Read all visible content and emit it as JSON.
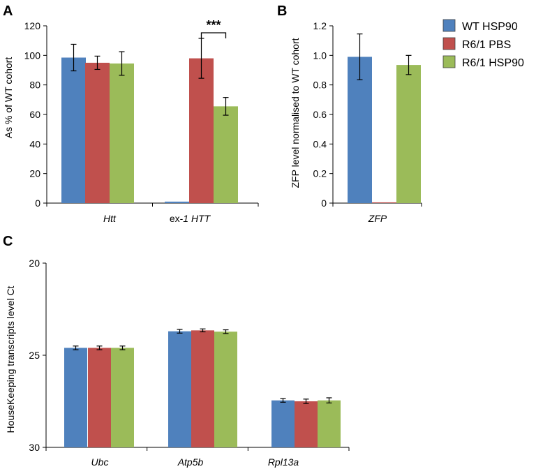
{
  "colors": {
    "wt": "#4F81BD",
    "pbs": "#C0504D",
    "hsp": "#9BBB59",
    "axis": "#000000"
  },
  "legend": {
    "entries": [
      {
        "name": "WT HSP90",
        "color": "#4F81BD"
      },
      {
        "name": "R6/1 PBS",
        "color": "#C0504D"
      },
      {
        "name": "R6/1 HSP90",
        "color": "#9BBB59"
      }
    ]
  },
  "chart_data": [
    {
      "panel": "A",
      "type": "bar",
      "ylabel": "As % of WT cohort",
      "ylim": [
        0,
        120
      ],
      "yticks": [
        0,
        20,
        40,
        60,
        80,
        100,
        120
      ],
      "categories": [
        {
          "pre": "",
          "italic": "Htt"
        },
        {
          "pre": "ex-",
          "italic": "1 HTT"
        }
      ],
      "series": [
        {
          "name": "WT HSP90",
          "values": [
            98.5,
            1.0
          ],
          "errors": [
            9,
            0
          ]
        },
        {
          "name": "R6/1 PBS",
          "values": [
            95.0,
            98.0
          ],
          "errors": [
            4.5,
            13.5
          ]
        },
        {
          "name": "R6/1 HSP90",
          "values": [
            94.5,
            65.5
          ],
          "errors": [
            8,
            6
          ]
        }
      ],
      "annotation": {
        "text": "***",
        "category_index": 1,
        "from_series": 1,
        "to_series": 2
      }
    },
    {
      "panel": "B",
      "type": "bar",
      "ylabel": "ZFP level normalised to WT cohort",
      "ylim": [
        0,
        1.2
      ],
      "yticks": [
        "0",
        "0.2",
        "0.4",
        "0.6",
        "0.8",
        "1.0",
        "1.2"
      ],
      "categories": [
        {
          "pre": "",
          "italic": "ZFP"
        }
      ],
      "series": [
        {
          "name": "WT HSP90",
          "values": [
            0.99
          ],
          "errors": [
            0.155
          ]
        },
        {
          "name": "R6/1 PBS",
          "values": [
            0.005
          ],
          "errors": [
            0
          ]
        },
        {
          "name": "R6/1 HSP90",
          "values": [
            0.935
          ],
          "errors": [
            0.065
          ]
        }
      ]
    },
    {
      "panel": "C",
      "type": "bar",
      "ylabel": "HouseKeeping transcripts level Ct",
      "ylim": [
        30,
        20
      ],
      "yticks": [
        20,
        25,
        30
      ],
      "categories": [
        {
          "pre": "",
          "italic": "Ubc"
        },
        {
          "pre": "",
          "italic": "Atp5b"
        },
        {
          "pre": "",
          "italic": "Rpl13a"
        }
      ],
      "series": [
        {
          "name": "WT HSP90",
          "values": [
            24.6,
            23.7,
            27.45
          ],
          "errors": [
            0.1,
            0.1,
            0.1
          ]
        },
        {
          "name": "R6/1 PBS",
          "values": [
            24.6,
            23.65,
            27.5
          ],
          "errors": [
            0.1,
            0.08,
            0.12
          ]
        },
        {
          "name": "R6/1 HSP90",
          "values": [
            24.6,
            23.72,
            27.45
          ],
          "errors": [
            0.1,
            0.1,
            0.14
          ]
        }
      ]
    }
  ]
}
